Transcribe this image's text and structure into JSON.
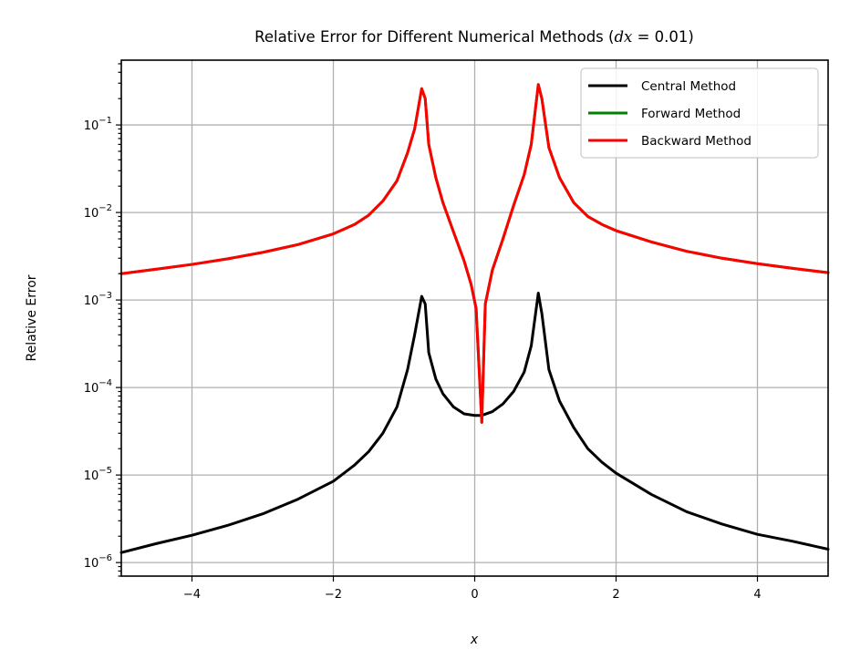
{
  "chart_data": {
    "type": "line",
    "title": "Relative Error for Different Numerical Methods (",
    "title_math": "dx",
    "title_suffix": " = 0.01)",
    "xlabel": "x",
    "ylabel": "Relative Error",
    "xlim": [
      -5,
      5
    ],
    "ylim": [
      7e-07,
      0.55
    ],
    "yscale": "log",
    "grid": true,
    "legend_position": "top-right",
    "x_ticks": [
      {
        "value": -4,
        "label": "−4"
      },
      {
        "value": -2,
        "label": "−2"
      },
      {
        "value": 0,
        "label": "0"
      },
      {
        "value": 2,
        "label": "2"
      },
      {
        "value": 4,
        "label": "4"
      }
    ],
    "y_ticks": [
      {
        "value": 1e-06,
        "base": "10",
        "exp": "−6"
      },
      {
        "value": 1e-05,
        "base": "10",
        "exp": "−5"
      },
      {
        "value": 0.0001,
        "base": "10",
        "exp": "−4"
      },
      {
        "value": 0.001,
        "base": "10",
        "exp": "−3"
      },
      {
        "value": 0.01,
        "base": "10",
        "exp": "−2"
      },
      {
        "value": 0.1,
        "base": "10",
        "exp": "−1"
      }
    ],
    "series": [
      {
        "name": "Central Method",
        "color": "#000000",
        "points": [
          [
            -5,
            1.3e-06
          ],
          [
            -4.5,
            1.65e-06
          ],
          [
            -4,
            2.05e-06
          ],
          [
            -3.5,
            2.65e-06
          ],
          [
            -3,
            3.6e-06
          ],
          [
            -2.5,
            5.3e-06
          ],
          [
            -2,
            8.5e-06
          ],
          [
            -1.7,
            1.3e-05
          ],
          [
            -1.5,
            1.85e-05
          ],
          [
            -1.3,
            3e-05
          ],
          [
            -1.1,
            6e-05
          ],
          [
            -0.95,
            0.00016
          ],
          [
            -0.85,
            0.0004
          ],
          [
            -0.75,
            0.0011
          ],
          [
            -0.7,
            0.0009
          ],
          [
            -0.65,
            0.00025
          ],
          [
            -0.55,
            0.000125
          ],
          [
            -0.45,
            8.5e-05
          ],
          [
            -0.3,
            6e-05
          ],
          [
            -0.15,
            5e-05
          ],
          [
            0,
            4.8e-05
          ],
          [
            0.1,
            4.8e-05
          ],
          [
            0.25,
            5.3e-05
          ],
          [
            0.4,
            6.5e-05
          ],
          [
            0.55,
            9e-05
          ],
          [
            0.7,
            0.00015
          ],
          [
            0.8,
            0.0003
          ],
          [
            0.9,
            0.0012
          ],
          [
            0.95,
            0.0007
          ],
          [
            1.05,
            0.00016
          ],
          [
            1.2,
            7e-05
          ],
          [
            1.4,
            3.5e-05
          ],
          [
            1.6,
            2e-05
          ],
          [
            1.8,
            1.4e-05
          ],
          [
            2,
            1.05e-05
          ],
          [
            2.5,
            6e-06
          ],
          [
            3,
            3.8e-06
          ],
          [
            3.5,
            2.75e-06
          ],
          [
            4,
            2.1e-06
          ],
          [
            4.5,
            1.75e-06
          ],
          [
            5,
            1.42e-06
          ]
        ]
      },
      {
        "name": "Forward Method",
        "color": "#008000",
        "points": [
          [
            -5,
            0.002
          ],
          [
            -4.5,
            0.00225
          ],
          [
            -4,
            0.00255
          ],
          [
            -3.5,
            0.00295
          ],
          [
            -3,
            0.0035
          ],
          [
            -2.5,
            0.0043
          ],
          [
            -2,
            0.0057
          ],
          [
            -1.7,
            0.0073
          ],
          [
            -1.5,
            0.0093
          ],
          [
            -1.3,
            0.0135
          ],
          [
            -1.1,
            0.023
          ],
          [
            -0.95,
            0.048
          ],
          [
            -0.85,
            0.09
          ],
          [
            -0.75,
            0.26
          ],
          [
            -0.7,
            0.2
          ],
          [
            -0.65,
            0.06
          ],
          [
            -0.55,
            0.025
          ],
          [
            -0.45,
            0.013
          ],
          [
            -0.3,
            0.006
          ],
          [
            -0.15,
            0.0028
          ],
          [
            -0.05,
            0.0015
          ],
          [
            0.02,
            0.0008
          ],
          [
            0.1,
            4e-05
          ],
          [
            0.15,
            0.0009
          ],
          [
            0.25,
            0.0022
          ],
          [
            0.4,
            0.005
          ],
          [
            0.55,
            0.012
          ],
          [
            0.7,
            0.027
          ],
          [
            0.8,
            0.06
          ],
          [
            0.9,
            0.29
          ],
          [
            0.95,
            0.2
          ],
          [
            1.05,
            0.055
          ],
          [
            1.2,
            0.025
          ],
          [
            1.4,
            0.013
          ],
          [
            1.6,
            0.009
          ],
          [
            1.8,
            0.0073
          ],
          [
            2,
            0.0062
          ],
          [
            2.5,
            0.0046
          ],
          [
            3,
            0.0036
          ],
          [
            3.5,
            0.003
          ],
          [
            4,
            0.0026
          ],
          [
            4.5,
            0.0023
          ],
          [
            5,
            0.00205
          ]
        ]
      },
      {
        "name": "Backward Method",
        "color": "#ff0000",
        "points": [
          [
            -5,
            0.002
          ],
          [
            -4.5,
            0.00225
          ],
          [
            -4,
            0.00255
          ],
          [
            -3.5,
            0.00295
          ],
          [
            -3,
            0.0035
          ],
          [
            -2.5,
            0.0043
          ],
          [
            -2,
            0.0057
          ],
          [
            -1.7,
            0.0073
          ],
          [
            -1.5,
            0.0093
          ],
          [
            -1.3,
            0.0135
          ],
          [
            -1.1,
            0.023
          ],
          [
            -0.95,
            0.048
          ],
          [
            -0.85,
            0.09
          ],
          [
            -0.75,
            0.26
          ],
          [
            -0.7,
            0.2
          ],
          [
            -0.65,
            0.06
          ],
          [
            -0.55,
            0.025
          ],
          [
            -0.45,
            0.013
          ],
          [
            -0.3,
            0.006
          ],
          [
            -0.15,
            0.0028
          ],
          [
            -0.05,
            0.0015
          ],
          [
            0.02,
            0.0008
          ],
          [
            0.1,
            4e-05
          ],
          [
            0.15,
            0.0009
          ],
          [
            0.25,
            0.0022
          ],
          [
            0.4,
            0.005
          ],
          [
            0.55,
            0.012
          ],
          [
            0.7,
            0.027
          ],
          [
            0.8,
            0.06
          ],
          [
            0.9,
            0.29
          ],
          [
            0.95,
            0.2
          ],
          [
            1.05,
            0.055
          ],
          [
            1.2,
            0.025
          ],
          [
            1.4,
            0.013
          ],
          [
            1.6,
            0.009
          ],
          [
            1.8,
            0.0073
          ],
          [
            2,
            0.0062
          ],
          [
            2.5,
            0.0046
          ],
          [
            3,
            0.0036
          ],
          [
            3.5,
            0.003
          ],
          [
            4,
            0.0026
          ],
          [
            4.5,
            0.0023
          ],
          [
            5,
            0.00205
          ]
        ]
      }
    ]
  }
}
